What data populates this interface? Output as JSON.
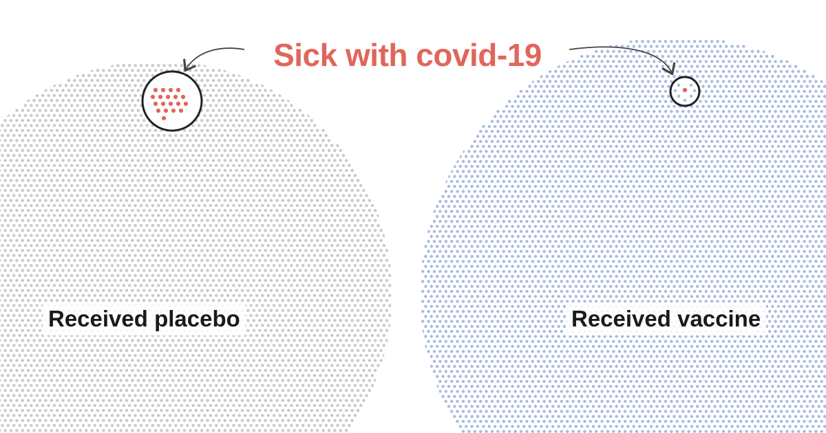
{
  "headline": {
    "text": "Sick with covid-19",
    "color": "#e0665a"
  },
  "groups": [
    {
      "id": "placebo",
      "label": "Received placebo",
      "dot_color": "#c8c8c8",
      "sick_dots_shown": 19
    },
    {
      "id": "vaccine",
      "label": "Received vaccine",
      "dot_color": "#a9badf",
      "sick_dots_shown": 1
    }
  ],
  "colors": {
    "sick_dot": "#e0665a",
    "ring": "#222222",
    "arrow": "#444444"
  }
}
